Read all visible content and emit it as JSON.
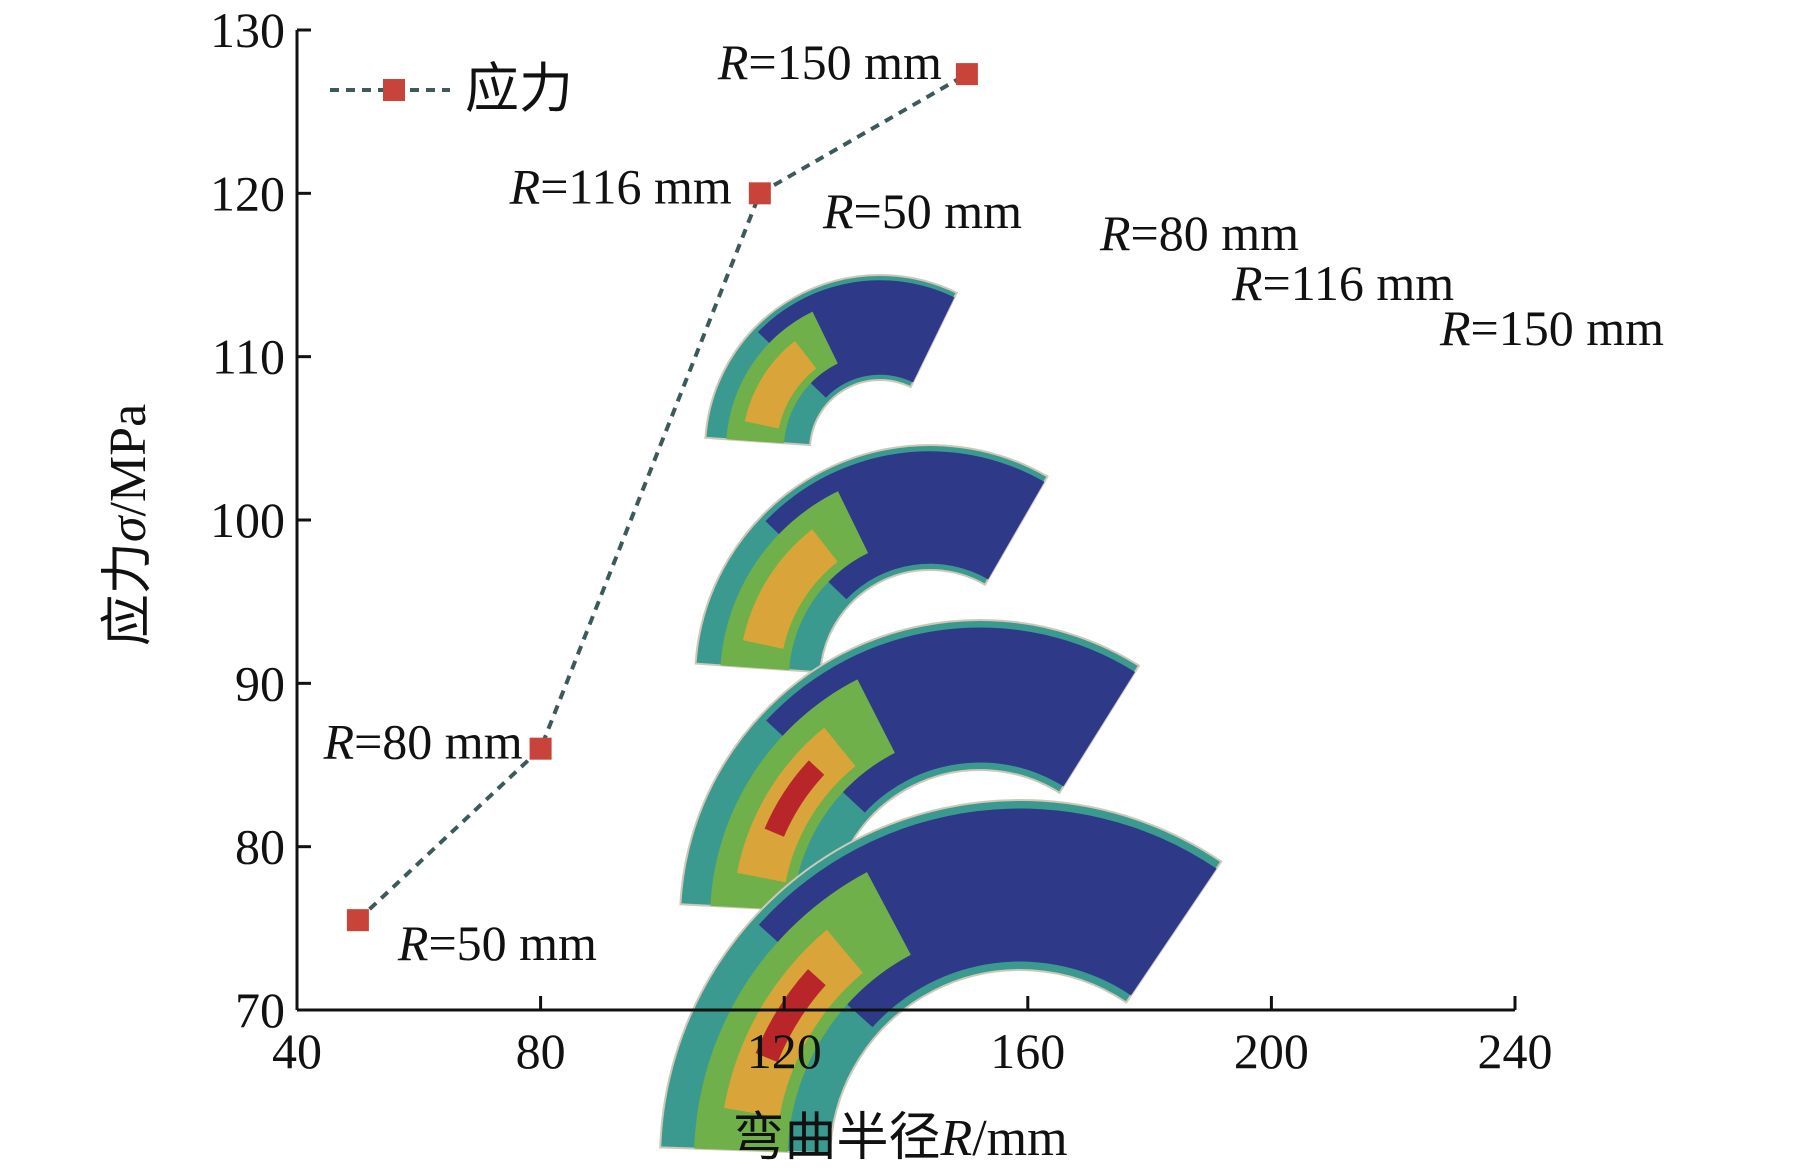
{
  "chart_data": {
    "type": "line",
    "xlabel_prefix": "弯曲半径",
    "xlabel_var": "R",
    "xlabel_unit": "/mm",
    "ylabel_prefix": "应力",
    "ylabel_var": "σ",
    "ylabel_unit": "/MPa",
    "xlim": [
      40,
      240
    ],
    "ylim": [
      70,
      130
    ],
    "xticks": [
      40,
      80,
      120,
      160,
      200,
      240
    ],
    "yticks": [
      70,
      80,
      90,
      100,
      110,
      120,
      130
    ],
    "legend_position": "top-left",
    "grid": false,
    "series": [
      {
        "name": "应力",
        "color": "#c8443a",
        "line_color": "#3d5a5a",
        "line_style": "dashed",
        "marker": "square",
        "x": [
          50,
          80,
          116,
          150
        ],
        "y": [
          75.5,
          86,
          120,
          127.3
        ],
        "point_labels": [
          "50 mm",
          "80 mm",
          "116 mm",
          "150 mm"
        ]
      }
    ],
    "inset": {
      "description_labels": [
        "50 mm",
        "80 mm",
        "116 mm",
        "150 mm"
      ],
      "colors": {
        "high": "#b8262a",
        "mid_high": "#d9a53a",
        "mid": "#6fb04a",
        "low_mid": "#3b9a8f",
        "low": "#2e3a88"
      }
    },
    "label_var": "R"
  }
}
